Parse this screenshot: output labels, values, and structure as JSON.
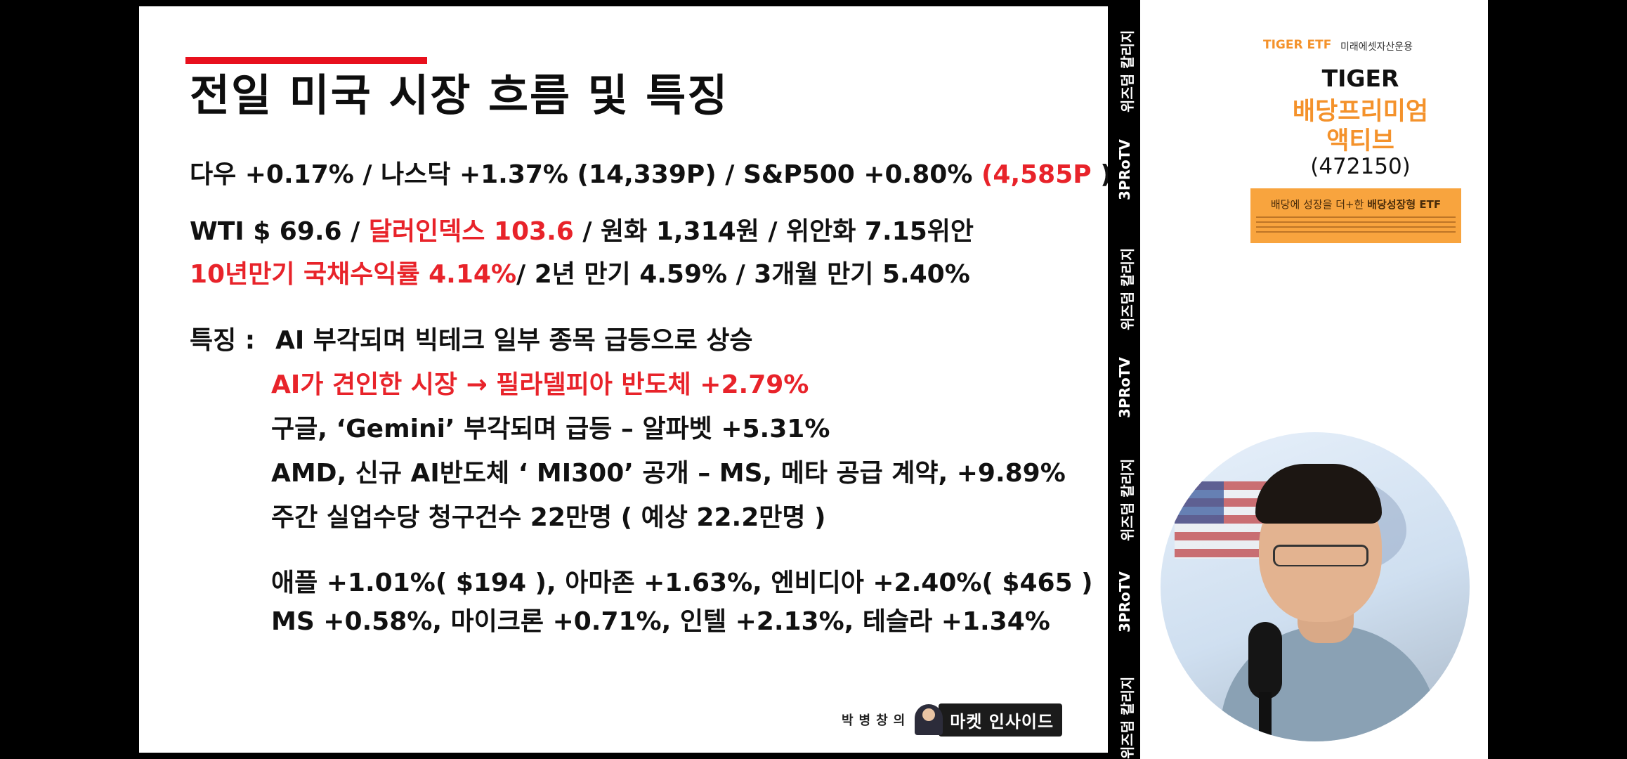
{
  "slide": {
    "title": "전일 미국 시장 흐름 및 특징",
    "line1": {
      "text": "다우 +0.17% / 나스닥 +1.37% (14,339P) / S&P500 +0.80% ",
      "red": "(4,585P",
      "tail": " )"
    },
    "line2": {
      "pre": "WTI $ 69.6 / ",
      "red": "달러인덱스 103.6",
      "post": " / 원화 1,314원 / 위안화 7.15위안"
    },
    "line3": {
      "red": "10년만기 국채수익률 4.14%",
      "post": "/ 2년 만기 4.59% / 3개월 만기 5.40%"
    },
    "feature_label": "특징 :",
    "feature_text": "AI 부각되며 빅테크 일부 종목 급등으로 상승",
    "bullets": [
      "AI가 견인한 시장 → 필라델피아 반도체 +2.79%",
      "구글, ‘Gemini’ 부각되며 급등 – 알파벳 +5.31%",
      "AMD, 신규 AI반도체 ‘ MI300’ 공개 – MS, 메타 공급 계약, +9.89%",
      "주간 실업수당 청구건수 22만명 ( 예상 22.2만명 )"
    ],
    "stocks1": "애플 +1.01%( $194 ), 아마존 +1.63%, 엔비디아 +2.40%( $465 )",
    "stocks2": "MS +0.58%, 마이크론 +0.71%, 인텔 +2.13%, 테슬라 +1.34%",
    "logo_name": "박병창의",
    "logo_badge": "마켓 인사이드"
  },
  "strip": [
    "위즈덤 칼리지",
    "3PRoTV",
    "위즈덤 칼리지",
    "3PRoTV",
    "위즈덤 칼리지",
    "3PRoTV",
    "위즈덤 칼리지"
  ],
  "ad": {
    "brand": "TIGER ETF",
    "company": "미래에셋자산운용",
    "name1": "TIGER",
    "name2": "배당프리미엄",
    "name3": "액티브",
    "code": "(472150)",
    "tagline_pre": "배당에 성장을 더+한 ",
    "tagline_bold": "배당성장형 ETF"
  },
  "colors": {
    "accent_red": "#e8232a",
    "ad_orange": "#f4922b",
    "ad_box": "#f8a43e"
  }
}
